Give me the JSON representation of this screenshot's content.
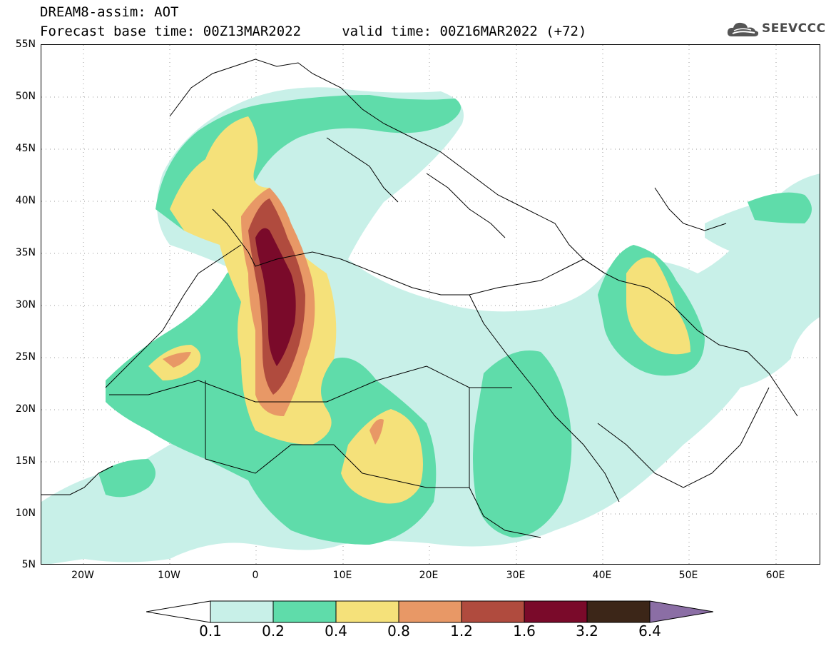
{
  "header": {
    "title": "DREAM8-assim: AOT",
    "line2": "Forecast base time: 00Z13MAR2022     valid time: 00Z16MAR2022 (+72)"
  },
  "logo": {
    "text": "SEEVCCC",
    "icon": "cloud-icon",
    "color": "#4a4a4a"
  },
  "map": {
    "lat_range": [
      5,
      55
    ],
    "lon_range": [
      -25,
      65
    ],
    "y_labels": [
      "55N",
      "50N",
      "45N",
      "40N",
      "35N",
      "30N",
      "25N",
      "20N",
      "15N",
      "10N",
      "5N"
    ],
    "x_labels": [
      "20W",
      "10W",
      "0",
      "10E",
      "20E",
      "30E",
      "40E",
      "50E",
      "60E"
    ]
  },
  "colorbar": {
    "labels": [
      "0.1",
      "0.2",
      "0.4",
      "0.8",
      "1.2",
      "1.6",
      "3.2",
      "6.4"
    ],
    "colors": [
      "#ffffff",
      "#c8f0e8",
      "#5fdcaa",
      "#f5e17a",
      "#e89866",
      "#b04b3e",
      "#7a0a2a",
      "#3c2618",
      "#8b6ea5"
    ]
  }
}
